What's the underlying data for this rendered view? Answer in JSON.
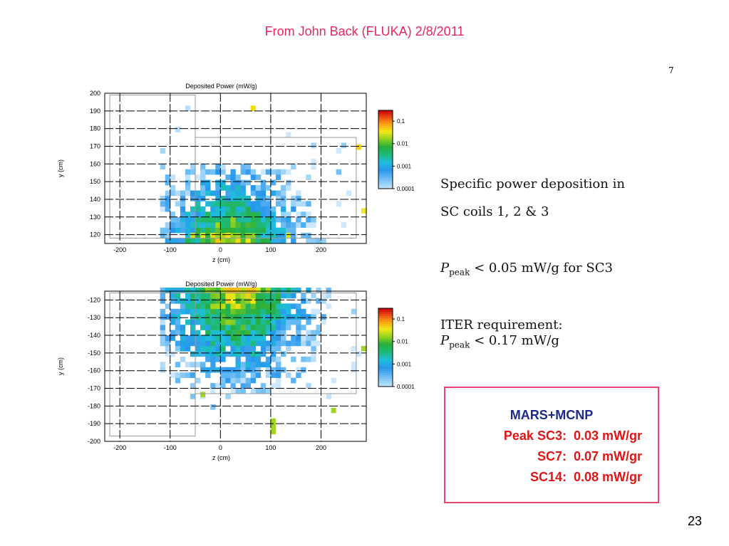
{
  "slide": {
    "title": "From John Back  (FLUKA) 2/8/2011",
    "page_number": "23",
    "paper_page_number": "7",
    "title_color": "#e8265e"
  },
  "notes": {
    "line1": "Specific power deposition in",
    "line2": "SC coils 1, 2 & 3",
    "peak_symbol": "P",
    "peak_sub": "peak",
    "peak_sc3": "< 0.05 mW/g for SC3",
    "iter_line": "ITER requirement:",
    "peak_iter": "< 0.17  mW/g"
  },
  "mars_box": {
    "title": "MARS+MCNP",
    "rows": [
      {
        "label": "Peak SC3:",
        "value": "0.03 mW/gr"
      },
      {
        "label": "SC7:",
        "value": "0.07 mW/gr"
      },
      {
        "label": "SC14:",
        "value": "0.08 mW/gr"
      }
    ],
    "border_color": "#e8446e",
    "title_color": "#1e2a8a",
    "row_color": "#e01616"
  },
  "chart_data": [
    {
      "type": "heatmap",
      "title": "Deposited Power (mW/g)",
      "xlabel": "z (cm)",
      "ylabel": "y (cm)",
      "xlim": [
        -230,
        290
      ],
      "ylim": [
        115,
        200
      ],
      "xticks": [
        "-200",
        "-100",
        "0",
        "100",
        "200"
      ],
      "yticks": [
        "200",
        "190",
        "180",
        "170",
        "160",
        "150",
        "140",
        "130",
        "120"
      ],
      "colorbar_ticks": [
        "0.1",
        "0.01",
        "0.001",
        "0.0001"
      ],
      "colorbar_scale": "log",
      "colorbar_range": [
        0.0001,
        0.3
      ],
      "cell_width_cm": 10,
      "cell_height_cm": 3,
      "hotspot_peak": 0.05,
      "grid": true
    },
    {
      "type": "heatmap",
      "title": "Deposited Power (mW/g)",
      "xlabel": "z (cm)",
      "ylabel": "y (cm)",
      "xlim": [
        -230,
        290
      ],
      "ylim": [
        -200,
        -115
      ],
      "xticks": [
        "-200",
        "-100",
        "0",
        "100",
        "200"
      ],
      "yticks": [
        "-120",
        "-130",
        "-140",
        "-150",
        "-160",
        "-170",
        "-180",
        "-190",
        "-200"
      ],
      "colorbar_ticks": [
        "0.1",
        "0.01",
        "0.001",
        "0.0001"
      ],
      "colorbar_scale": "log",
      "colorbar_range": [
        0.0001,
        0.3
      ],
      "cell_width_cm": 10,
      "cell_height_cm": 3,
      "grid": true
    }
  ]
}
